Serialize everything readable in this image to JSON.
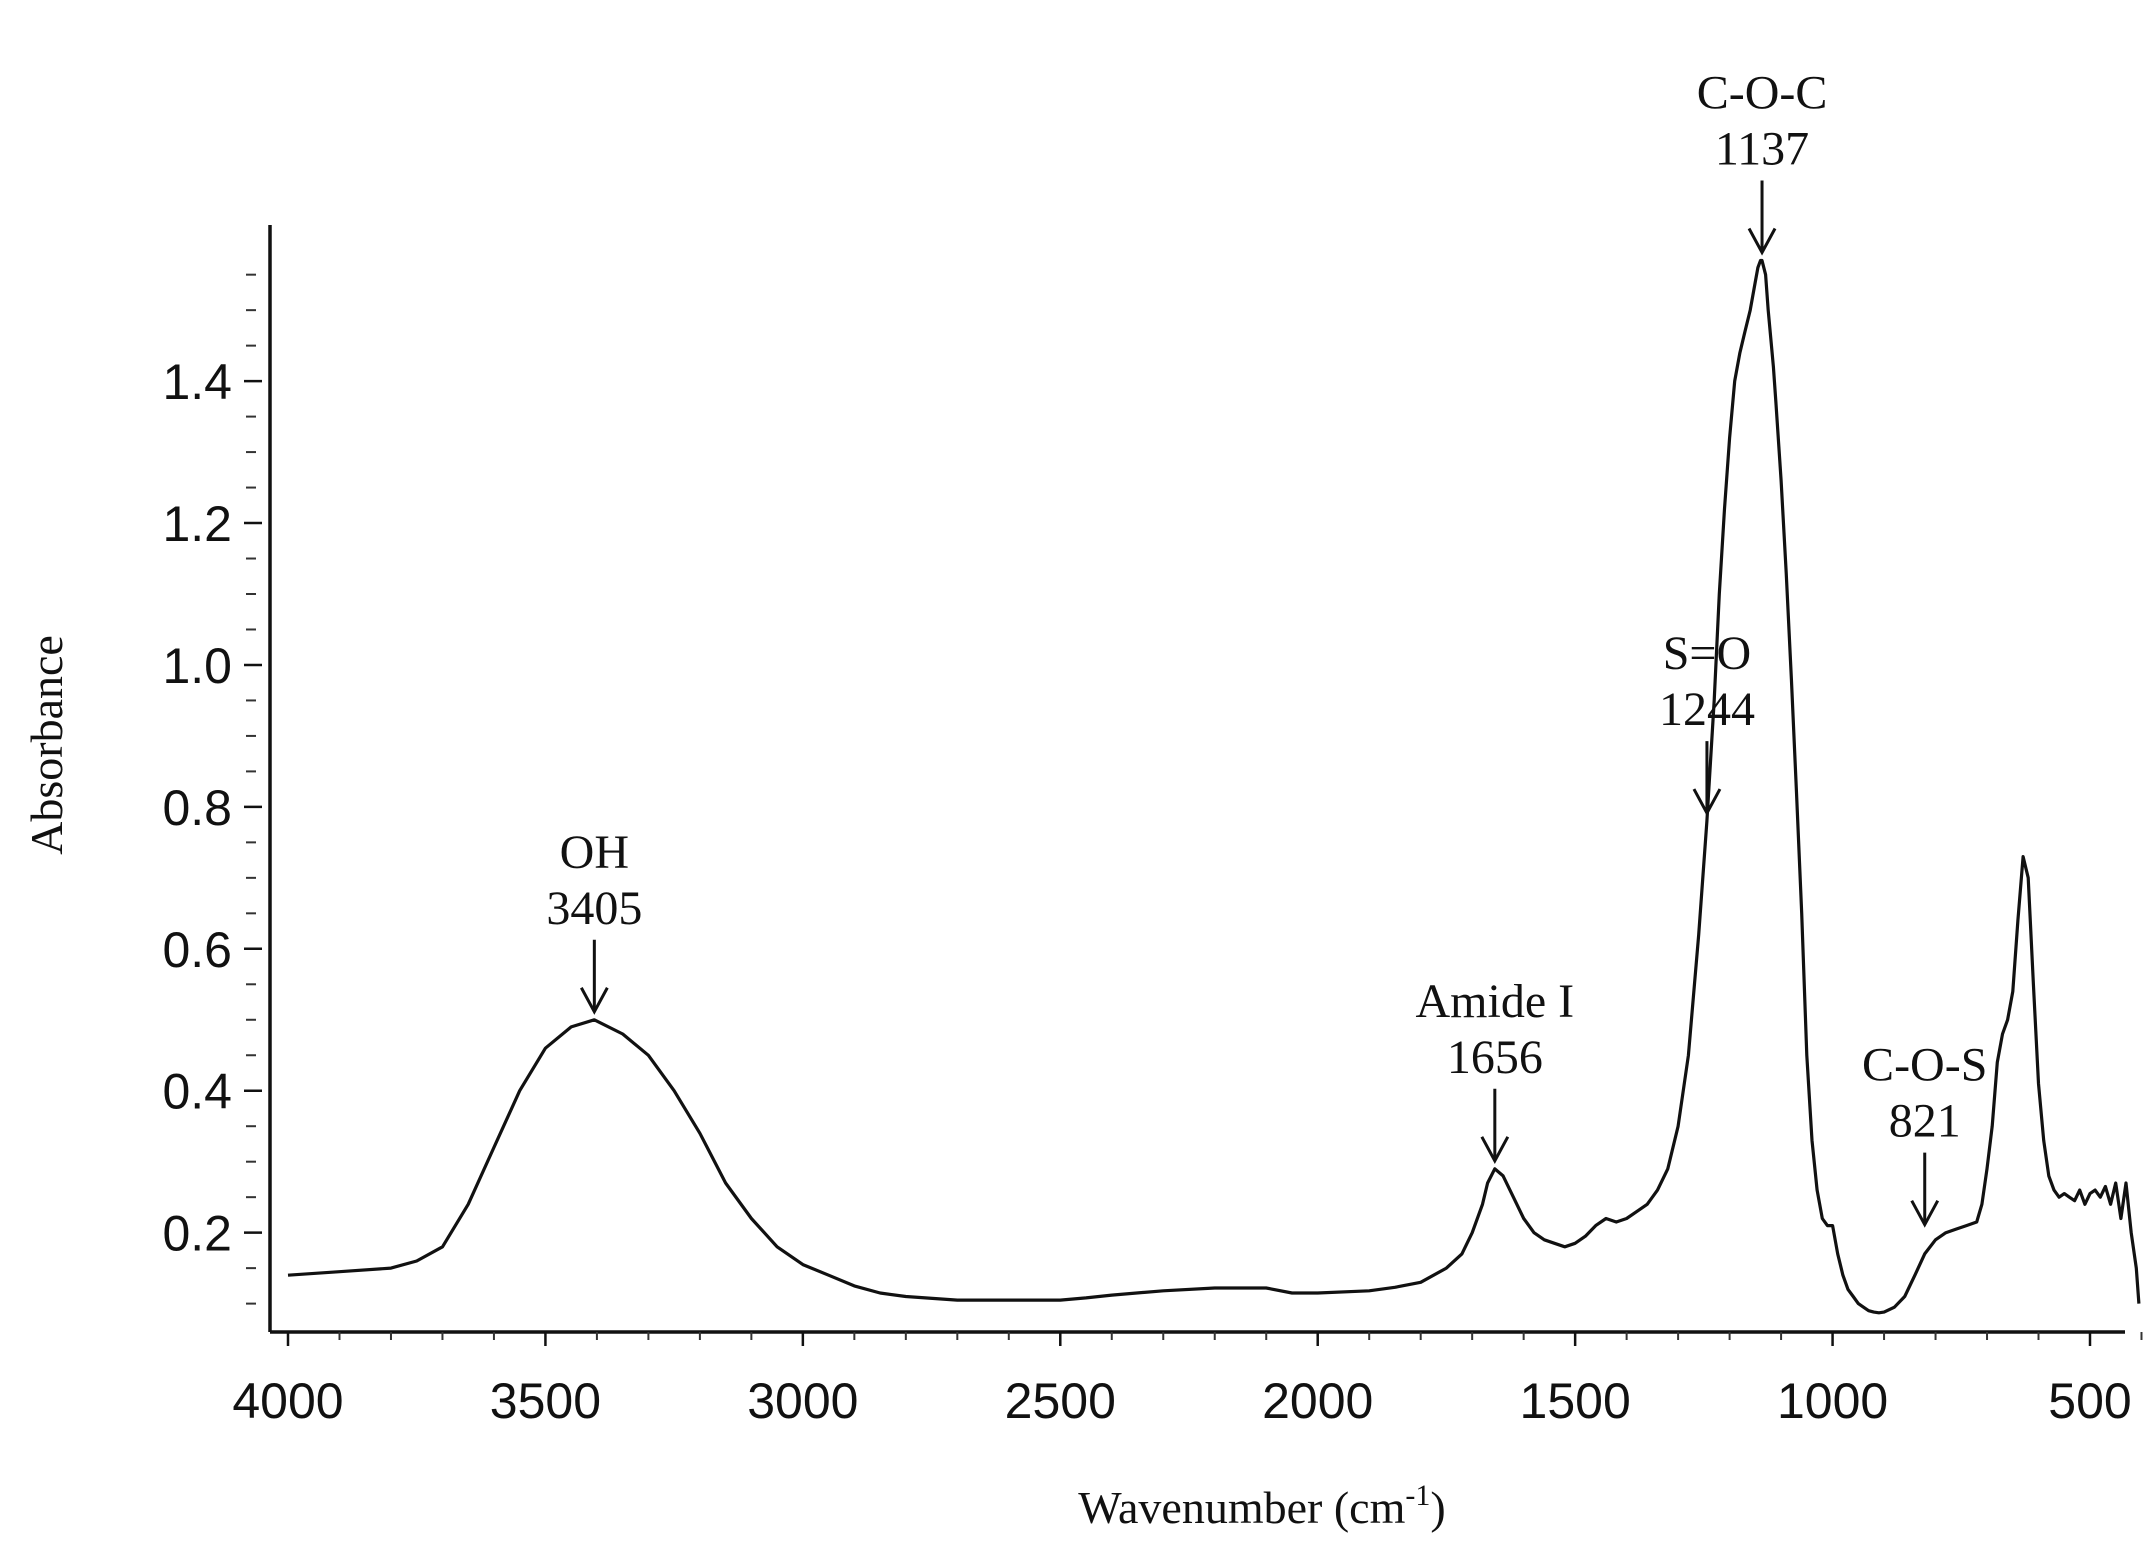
{
  "chart_data": {
    "type": "line",
    "xlabel": "Wavenumber (cm",
    "xlabel_sup": "-1",
    "xlabel_close": ")",
    "ylabel": "Absorbance",
    "xlim": [
      4000,
      400
    ],
    "x_reversed": true,
    "ylim": [
      0.06,
      1.62
    ],
    "x_ticks": [
      4000,
      3500,
      3000,
      2500,
      2000,
      1500,
      1000,
      500
    ],
    "y_ticks": [
      0.2,
      0.4,
      0.6,
      0.8,
      1.0,
      1.2,
      1.4
    ],
    "y_tick_labels": [
      "0.2",
      "0.4",
      "0.6",
      "0.8",
      "1.0",
      "1.2",
      "1.4"
    ],
    "grid": false,
    "series": [
      {
        "x": [
          4000,
          3900,
          3800,
          3750,
          3700,
          3650,
          3600,
          3550,
          3500,
          3450,
          3405,
          3350,
          3300,
          3250,
          3200,
          3150,
          3100,
          3050,
          3000,
          2950,
          2900,
          2850,
          2800,
          2700,
          2600,
          2500,
          2450,
          2400,
          2300,
          2200,
          2100,
          2050,
          2000,
          1900,
          1850,
          1800,
          1750,
          1720,
          1700,
          1680,
          1670,
          1656,
          1640,
          1620,
          1600,
          1580,
          1560,
          1540,
          1520,
          1500,
          1480,
          1460,
          1440,
          1420,
          1400,
          1380,
          1360,
          1340,
          1320,
          1300,
          1280,
          1260,
          1244,
          1230,
          1220,
          1210,
          1200,
          1190,
          1180,
          1170,
          1160,
          1150,
          1145,
          1140,
          1137,
          1130,
          1125,
          1120,
          1115,
          1110,
          1100,
          1090,
          1080,
          1070,
          1060,
          1050,
          1040,
          1030,
          1020,
          1010,
          1000,
          990,
          980,
          970,
          960,
          950,
          940,
          930,
          920,
          910,
          900,
          880,
          860,
          840,
          821,
          800,
          780,
          760,
          740,
          720,
          710,
          700,
          690,
          680,
          670,
          660,
          650,
          640,
          630,
          620,
          610,
          600,
          590,
          580,
          570,
          560,
          550,
          540,
          530,
          520,
          510,
          500,
          490,
          480,
          470,
          460,
          450,
          440,
          430,
          420,
          410,
          405
        ],
        "y": [
          0.14,
          0.145,
          0.15,
          0.16,
          0.18,
          0.24,
          0.32,
          0.4,
          0.46,
          0.49,
          0.5,
          0.48,
          0.45,
          0.4,
          0.34,
          0.27,
          0.22,
          0.18,
          0.155,
          0.14,
          0.125,
          0.115,
          0.11,
          0.105,
          0.105,
          0.105,
          0.108,
          0.112,
          0.118,
          0.122,
          0.122,
          0.115,
          0.115,
          0.118,
          0.123,
          0.13,
          0.15,
          0.17,
          0.2,
          0.24,
          0.27,
          0.29,
          0.28,
          0.25,
          0.22,
          0.2,
          0.19,
          0.185,
          0.18,
          0.185,
          0.195,
          0.21,
          0.22,
          0.215,
          0.22,
          0.23,
          0.24,
          0.26,
          0.29,
          0.35,
          0.45,
          0.62,
          0.78,
          0.95,
          1.1,
          1.22,
          1.32,
          1.4,
          1.44,
          1.47,
          1.5,
          1.54,
          1.56,
          1.57,
          1.57,
          1.55,
          1.5,
          1.46,
          1.42,
          1.37,
          1.26,
          1.13,
          0.98,
          0.82,
          0.65,
          0.45,
          0.33,
          0.26,
          0.22,
          0.21,
          0.21,
          0.17,
          0.14,
          0.12,
          0.11,
          0.1,
          0.095,
          0.09,
          0.088,
          0.087,
          0.088,
          0.095,
          0.11,
          0.14,
          0.17,
          0.19,
          0.2,
          0.205,
          0.21,
          0.215,
          0.24,
          0.29,
          0.35,
          0.44,
          0.48,
          0.5,
          0.54,
          0.64,
          0.73,
          0.7,
          0.55,
          0.41,
          0.33,
          0.28,
          0.26,
          0.25,
          0.255,
          0.25,
          0.245,
          0.26,
          0.24,
          0.255,
          0.26,
          0.25,
          0.265,
          0.24,
          0.27,
          0.22,
          0.27,
          0.2,
          0.15,
          0.1
        ]
      }
    ],
    "annotations": [
      {
        "label": "OH",
        "value": "3405",
        "x": 3405,
        "y": 0.5
      },
      {
        "label": "Amide I",
        "value": "1656",
        "x": 1656,
        "y": 0.29
      },
      {
        "label": "S=O",
        "value": "1244",
        "x": 1244,
        "y": 0.78
      },
      {
        "label": "C-O-C",
        "value": "1137",
        "x": 1137,
        "y": 1.57
      },
      {
        "label": "C-O-S",
        "value": "821",
        "x": 821,
        "y": 0.2
      }
    ]
  }
}
